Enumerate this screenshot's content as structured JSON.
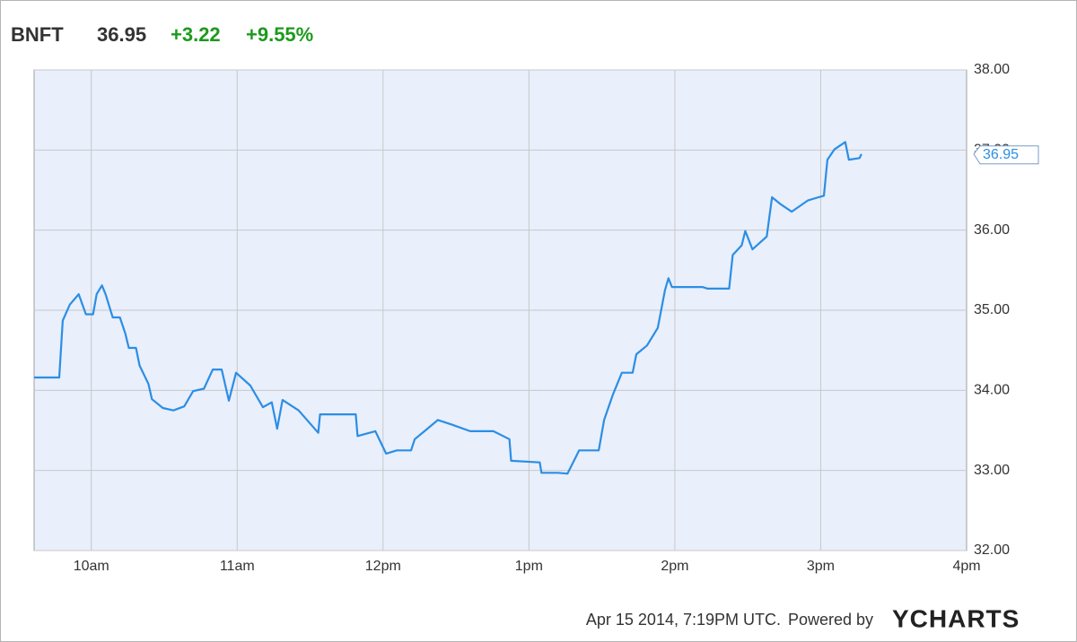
{
  "chart_data": {
    "type": "line",
    "ticker": "BNFT",
    "price": "36.95",
    "change": "+3.22",
    "change_percent": "+9.55%",
    "price_label": "36.95",
    "timestamp": "Apr 15 2014, 7:19PM UTC.",
    "powered_by": "Powered by",
    "brand": "YCHARTS",
    "grid": true,
    "color": "#2b8ee5",
    "xlim": [
      9.608,
      16
    ],
    "xticks": [
      {
        "value": 10,
        "label": "10am"
      },
      {
        "value": 11,
        "label": "11am"
      },
      {
        "value": 12,
        "label": "12pm"
      },
      {
        "value": 13,
        "label": "1pm"
      },
      {
        "value": 14,
        "label": "2pm"
      },
      {
        "value": 15,
        "label": "3pm"
      },
      {
        "value": 16,
        "label": "4pm"
      }
    ],
    "ylim": [
      32,
      38
    ],
    "yticks": [
      {
        "value": 32,
        "label": "32.00"
      },
      {
        "value": 33,
        "label": "33.00"
      },
      {
        "value": 34,
        "label": "34.00"
      },
      {
        "value": 35,
        "label": "35.00"
      },
      {
        "value": 36,
        "label": "36.00"
      },
      {
        "value": 37,
        "label": "37.00"
      },
      {
        "value": 38,
        "label": "38.00"
      }
    ],
    "x": [
      9.608,
      9.78,
      9.804,
      9.853,
      9.914,
      9.963,
      10.012,
      10.037,
      10.073,
      10.098,
      10.147,
      10.196,
      10.233,
      10.257,
      10.306,
      10.331,
      10.392,
      10.416,
      10.49,
      10.563,
      10.637,
      10.698,
      10.772,
      10.833,
      10.894,
      10.943,
      10.992,
      11.09,
      11.176,
      11.237,
      11.274,
      11.311,
      11.421,
      11.556,
      11.568,
      11.813,
      11.825,
      11.947,
      12.021,
      12.094,
      12.192,
      12.217,
      12.29,
      12.376,
      12.474,
      12.597,
      12.756,
      12.866,
      12.878,
      13.074,
      13.086,
      13.197,
      13.264,
      13.344,
      13.478,
      13.515,
      13.576,
      13.637,
      13.711,
      13.736,
      13.809,
      13.883,
      13.932,
      13.956,
      13.98,
      14.189,
      14.225,
      14.372,
      14.397,
      14.458,
      14.483,
      14.532,
      14.63,
      14.666,
      14.728,
      14.801,
      14.911,
      14.985,
      15.022,
      15.046,
      15.095,
      15.168,
      15.193,
      15.266,
      15.279
    ],
    "values": [
      34.16,
      34.16,
      34.87,
      35.07,
      35.2,
      34.95,
      34.95,
      35.2,
      35.31,
      35.2,
      34.91,
      34.91,
      34.71,
      34.53,
      34.53,
      34.31,
      34.08,
      33.89,
      33.78,
      33.75,
      33.8,
      33.99,
      34.02,
      34.26,
      34.26,
      33.87,
      34.22,
      34.06,
      33.79,
      33.85,
      33.52,
      33.88,
      33.75,
      33.47,
      33.7,
      33.7,
      33.43,
      33.49,
      33.21,
      33.25,
      33.25,
      33.39,
      33.5,
      33.63,
      33.57,
      33.49,
      33.49,
      33.39,
      33.12,
      33.1,
      32.97,
      32.97,
      32.96,
      33.25,
      33.25,
      33.63,
      33.95,
      34.22,
      34.22,
      34.45,
      34.56,
      34.78,
      35.25,
      35.4,
      35.29,
      35.29,
      35.27,
      35.27,
      35.69,
      35.81,
      35.99,
      35.76,
      35.92,
      36.41,
      36.32,
      36.23,
      36.37,
      36.41,
      36.43,
      36.88,
      37.01,
      37.1,
      36.88,
      36.9,
      36.95
    ]
  }
}
